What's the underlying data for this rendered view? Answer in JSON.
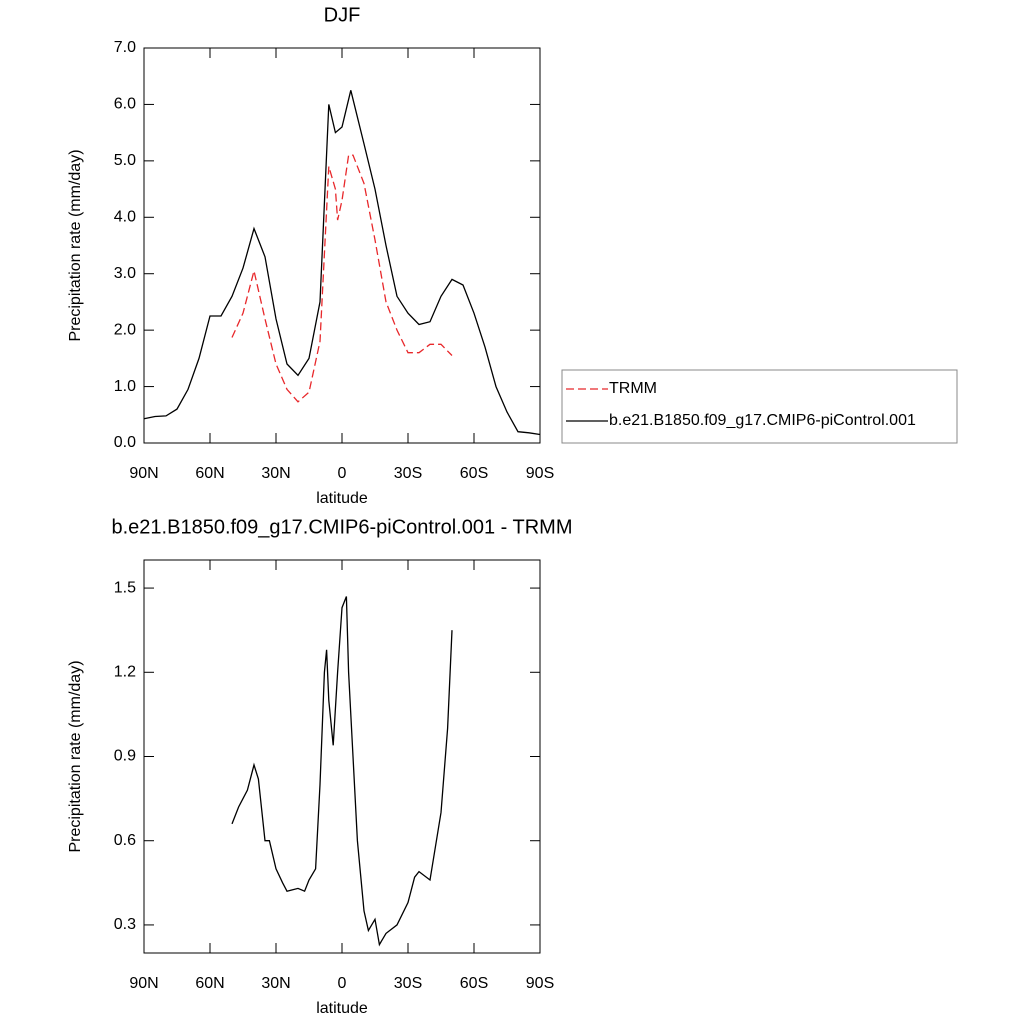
{
  "chart_data": [
    {
      "type": "line",
      "title": "DJF",
      "x_label": "latitude",
      "y_label": "Precipitation rate (mm/day)",
      "xlim": [
        90,
        -90
      ],
      "ylim": [
        0,
        7
      ],
      "xticks": [
        {
          "value": 90,
          "label": "90N"
        },
        {
          "value": 60,
          "label": "60N"
        },
        {
          "value": 30,
          "label": "30N"
        },
        0,
        {
          "value": -30,
          "label": "30S"
        },
        {
          "value": -60,
          "label": "60S"
        },
        {
          "value": -90,
          "label": "90S"
        }
      ],
      "yticks": [
        {
          "value": 0,
          "label": "0.0"
        },
        {
          "value": 1,
          "label": "1.0"
        },
        {
          "value": 2,
          "label": "2.0"
        },
        {
          "value": 3,
          "label": "3.0"
        },
        {
          "value": 4,
          "label": "4.0"
        },
        {
          "value": 5,
          "label": "5.0"
        },
        {
          "value": 6,
          "label": "6.0"
        },
        {
          "value": 7,
          "label": "7.0"
        }
      ],
      "legend": "right",
      "series": [
        {
          "name": "TRMM",
          "color": "#e8282b",
          "line_style": "dashed",
          "x": [
            50,
            45,
            40,
            35,
            30,
            25,
            20,
            15,
            10,
            6,
            3,
            2,
            0,
            -3,
            -5,
            -10,
            -15,
            -20,
            -25,
            -30,
            -35,
            -40,
            -45,
            -50
          ],
          "values": [
            1.87,
            2.3,
            3.05,
            2.2,
            1.4,
            0.95,
            0.73,
            0.9,
            1.8,
            4.9,
            4.5,
            3.95,
            4.3,
            5.1,
            5.1,
            4.6,
            3.6,
            2.5,
            2.0,
            1.6,
            1.6,
            1.75,
            1.75,
            1.55
          ]
        },
        {
          "name": "b.e21.B1850.f09_g17.CMIP6-piControl.001",
          "color": "#000000",
          "line_style": "solid",
          "x": [
            90,
            85,
            80,
            75,
            70,
            65,
            60,
            55,
            50,
            45,
            40,
            35,
            30,
            25,
            20,
            15,
            10,
            6,
            3,
            0,
            -4,
            -10,
            -15,
            -20,
            -25,
            -30,
            -35,
            -40,
            -45,
            -50,
            -55,
            -60,
            -65,
            -70,
            -75,
            -80,
            -85,
            -90
          ],
          "values": [
            0.43,
            0.47,
            0.48,
            0.6,
            0.95,
            1.5,
            2.25,
            2.25,
            2.6,
            3.1,
            3.8,
            3.3,
            2.2,
            1.4,
            1.2,
            1.5,
            2.5,
            6.0,
            5.5,
            5.6,
            6.25,
            5.3,
            4.5,
            3.5,
            2.6,
            2.3,
            2.1,
            2.15,
            2.6,
            2.9,
            2.8,
            2.3,
            1.7,
            1.0,
            0.55,
            0.2,
            0.18,
            0.15
          ]
        }
      ]
    },
    {
      "type": "line",
      "title": "b.e21.B1850.f09_g17.CMIP6-piControl.001 - TRMM",
      "x_label": "latitude",
      "y_label": "Precipitation rate (mm/day)",
      "xlim": [
        90,
        -90
      ],
      "ylim": [
        0.2,
        1.6
      ],
      "xticks": [
        {
          "value": 90,
          "label": "90N"
        },
        {
          "value": 60,
          "label": "60N"
        },
        {
          "value": 30,
          "label": "30N"
        },
        0,
        {
          "value": -30,
          "label": "30S"
        },
        {
          "value": -60,
          "label": "60S"
        },
        {
          "value": -90,
          "label": "90S"
        }
      ],
      "yticks": [
        0.3,
        0.6,
        0.9,
        1.2,
        1.5
      ],
      "series": [
        {
          "color": "#000000",
          "line_style": "solid",
          "x": [
            50,
            47,
            45,
            43,
            40,
            38,
            35,
            33,
            30,
            27,
            25,
            20,
            17,
            15,
            12,
            10,
            8,
            7,
            6,
            4,
            2,
            0,
            -2,
            -3,
            -5,
            -7,
            -10,
            -12,
            -15,
            -17,
            -20,
            -25,
            -30,
            -33,
            -35,
            -40,
            -45,
            -48,
            -50
          ],
          "values": [
            0.66,
            0.72,
            0.75,
            0.78,
            0.87,
            0.82,
            0.6,
            0.6,
            0.5,
            0.45,
            0.42,
            0.43,
            0.42,
            0.46,
            0.5,
            0.8,
            1.2,
            1.28,
            1.1,
            0.94,
            1.2,
            1.43,
            1.47,
            1.2,
            0.9,
            0.6,
            0.35,
            0.28,
            0.32,
            0.23,
            0.27,
            0.3,
            0.38,
            0.47,
            0.49,
            0.46,
            0.7,
            1.0,
            1.35
          ]
        }
      ]
    }
  ]
}
